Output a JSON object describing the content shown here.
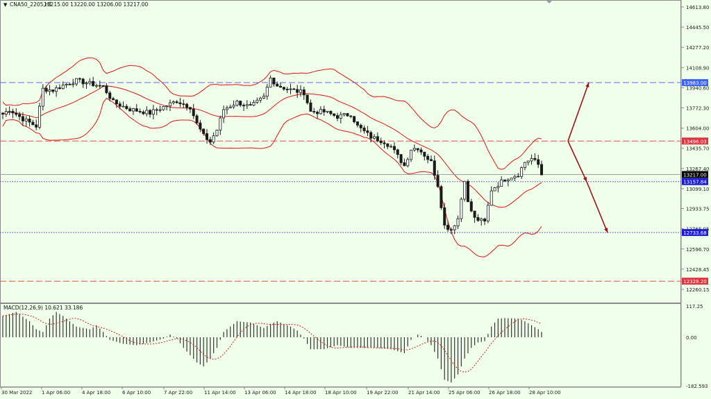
{
  "chart_data": [
    {
      "type": "candlestick",
      "symbol_label": "CNA50_2205,H1",
      "ohlc_header": "13215.00 13220.00 13206.00 13217.00",
      "ylim": [
        12150,
        14660
      ],
      "price_ticks": [
        "14613.80",
        "14445.50",
        "14277.20",
        "14108.90",
        "13940.60",
        "13772.30",
        "13604.00",
        "13435.70",
        "13267.40",
        "13099.10",
        "12933.75",
        "12765.05",
        "12596.70",
        "12428.45",
        "12260.15"
      ],
      "x_tick_labels": [
        "30 Mar 2022",
        "1 Apr 06:00",
        "4 Apr 18:00",
        "6 Apr 10:00",
        "7 Apr 22:00",
        "11 Apr 14:00",
        "13 Apr 06:00",
        "14 Apr 18:00",
        "18 Apr 10:00",
        "19 Apr 22:00",
        "21 Apr 14:00",
        "25 Apr 06:00",
        "26 Apr 18:00",
        "28 Apr 10:00"
      ],
      "price_waypoints": [
        [
          0,
          13720
        ],
        [
          2,
          13760
        ],
        [
          6,
          13680
        ],
        [
          10,
          13620
        ],
        [
          12,
          13930
        ],
        [
          15,
          13920
        ],
        [
          18,
          13960
        ],
        [
          22,
          14000
        ],
        [
          30,
          13950
        ],
        [
          33,
          13820
        ],
        [
          38,
          13760
        ],
        [
          44,
          13730
        ],
        [
          48,
          13780
        ],
        [
          52,
          13830
        ],
        [
          56,
          13780
        ],
        [
          58,
          13640
        ],
        [
          60,
          13540
        ],
        [
          62,
          13490
        ],
        [
          64,
          13590
        ],
        [
          66,
          13760
        ],
        [
          70,
          13820
        ],
        [
          74,
          13780
        ],
        [
          78,
          13860
        ],
        [
          80,
          14020
        ],
        [
          82,
          13960
        ],
        [
          85,
          13930
        ],
        [
          88,
          13910
        ],
        [
          90,
          13900
        ],
        [
          92,
          13740
        ],
        [
          96,
          13740
        ],
        [
          100,
          13700
        ],
        [
          104,
          13720
        ],
        [
          106,
          13620
        ],
        [
          110,
          13530
        ],
        [
          114,
          13490
        ],
        [
          116,
          13450
        ],
        [
          118,
          13370
        ],
        [
          120,
          13290
        ],
        [
          122,
          13430
        ],
        [
          124,
          13440
        ],
        [
          128,
          13320
        ],
        [
          130,
          13130
        ],
        [
          132,
          12790
        ],
        [
          134,
          12760
        ],
        [
          136,
          12850
        ],
        [
          138,
          13180
        ],
        [
          139,
          12980
        ],
        [
          141,
          12850
        ],
        [
          144,
          12820
        ],
        [
          146,
          13090
        ],
        [
          150,
          13180
        ],
        [
          154,
          13220
        ],
        [
          156,
          13320
        ],
        [
          158,
          13350
        ],
        [
          160,
          13300
        ],
        [
          161,
          13217
        ]
      ],
      "lines": [
        {
          "label": "13983.00",
          "price": 13983.0,
          "color": "#6666ee",
          "style": "dash",
          "label_bg": "#3a64ff"
        },
        {
          "label": "13496.03",
          "price": 13496.03,
          "color": "#e05050",
          "style": "dash",
          "label_bg": "#e0323c"
        },
        {
          "label": "13217.00",
          "price": 13217.0,
          "color": "#a0a0a0",
          "style": "solid",
          "label_bg": "#000000"
        },
        {
          "label": "13157.84",
          "price": 13157.84,
          "color": "#3a3aee",
          "style": "dot",
          "label_bg": "#1c1cdc"
        },
        {
          "label": "12733.68",
          "price": 12733.68,
          "color": "#3a3aee",
          "style": "dot",
          "label_bg": "#1c1cdc"
        },
        {
          "label": "12328.20",
          "price": 12328.2,
          "color": "#e05050",
          "style": "dash",
          "label_bg": "#e0323c"
        }
      ],
      "arrows": [
        {
          "from": [
            818,
            13496
          ],
          "to": [
            848,
            13983
          ],
          "color": "#a0101a"
        },
        {
          "from": [
            818,
            13496
          ],
          "to": [
            845,
            13157
          ],
          "color": "#a0101a"
        },
        {
          "from": [
            845,
            13157
          ],
          "to": [
            875,
            12733
          ],
          "color": "#a0101a"
        }
      ],
      "colors": {
        "background": "#efffe9",
        "candles": "#1a1a1a",
        "bands": "#e01414",
        "grid_border": "#8a8a8a"
      }
    },
    {
      "type": "bar",
      "indicator_label": "MACD(12,26,9) 10.621 33.186",
      "ylim": [
        -182.593,
        117.25
      ],
      "axis_ticks": [
        "117.25",
        "0.00",
        "-182.593"
      ],
      "macd_waypoints": [
        [
          0,
          80
        ],
        [
          4,
          95
        ],
        [
          8,
          60
        ],
        [
          10,
          30
        ],
        [
          12,
          20
        ],
        [
          14,
          70
        ],
        [
          16,
          95
        ],
        [
          18,
          80
        ],
        [
          22,
          40
        ],
        [
          26,
          30
        ],
        [
          28,
          45
        ],
        [
          30,
          20
        ],
        [
          32,
          -10
        ],
        [
          36,
          -25
        ],
        [
          40,
          -30
        ],
        [
          44,
          -20
        ],
        [
          48,
          -5
        ],
        [
          50,
          10
        ],
        [
          52,
          -5
        ],
        [
          54,
          -40
        ],
        [
          58,
          -95
        ],
        [
          60,
          -110
        ],
        [
          62,
          -80
        ],
        [
          64,
          -40
        ],
        [
          66,
          20
        ],
        [
          70,
          60
        ],
        [
          74,
          55
        ],
        [
          78,
          35
        ],
        [
          80,
          50
        ],
        [
          82,
          60
        ],
        [
          86,
          40
        ],
        [
          88,
          25
        ],
        [
          90,
          -5
        ],
        [
          92,
          -45
        ],
        [
          96,
          -45
        ],
        [
          100,
          -30
        ],
        [
          104,
          -40
        ],
        [
          108,
          -40
        ],
        [
          112,
          -40
        ],
        [
          116,
          -45
        ],
        [
          120,
          -60
        ],
        [
          122,
          -10
        ],
        [
          124,
          10
        ],
        [
          126,
          0
        ],
        [
          128,
          -30
        ],
        [
          130,
          -80
        ],
        [
          132,
          -160
        ],
        [
          134,
          -170
        ],
        [
          136,
          -140
        ],
        [
          138,
          -80
        ],
        [
          140,
          -40
        ],
        [
          142,
          -20
        ],
        [
          144,
          -15
        ],
        [
          146,
          40
        ],
        [
          148,
          70
        ],
        [
          150,
          72
        ],
        [
          154,
          70
        ],
        [
          156,
          60
        ],
        [
          158,
          45
        ],
        [
          160,
          30
        ],
        [
          161,
          20
        ]
      ],
      "signal_color": "#cc2020",
      "bar_color": "#333333"
    }
  ]
}
